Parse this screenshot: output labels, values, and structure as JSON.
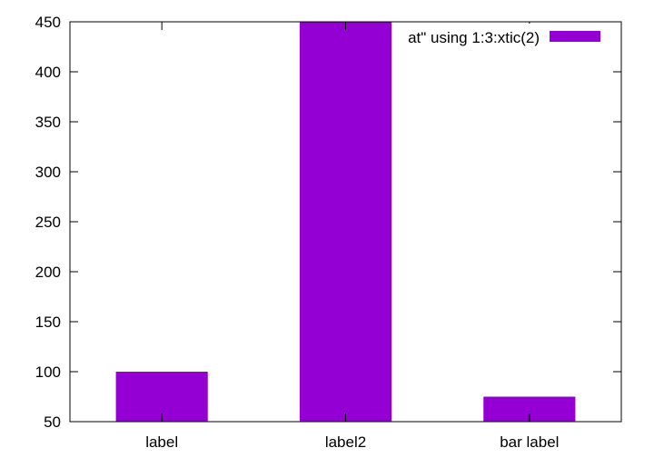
{
  "chart_data": {
    "type": "bar",
    "categories": [
      "label",
      "label2",
      "bar label"
    ],
    "series": [
      {
        "name": "at\" using 1:3:xtic(2)",
        "values": [
          100,
          450,
          75
        ],
        "color": "#9400d3"
      }
    ],
    "ylim": [
      50,
      450
    ],
    "yticks": [
      50,
      100,
      150,
      200,
      250,
      300,
      350,
      400,
      450
    ],
    "xlabel": "",
    "ylabel": "",
    "title": "",
    "legend_position": "top-right",
    "grid": false
  }
}
